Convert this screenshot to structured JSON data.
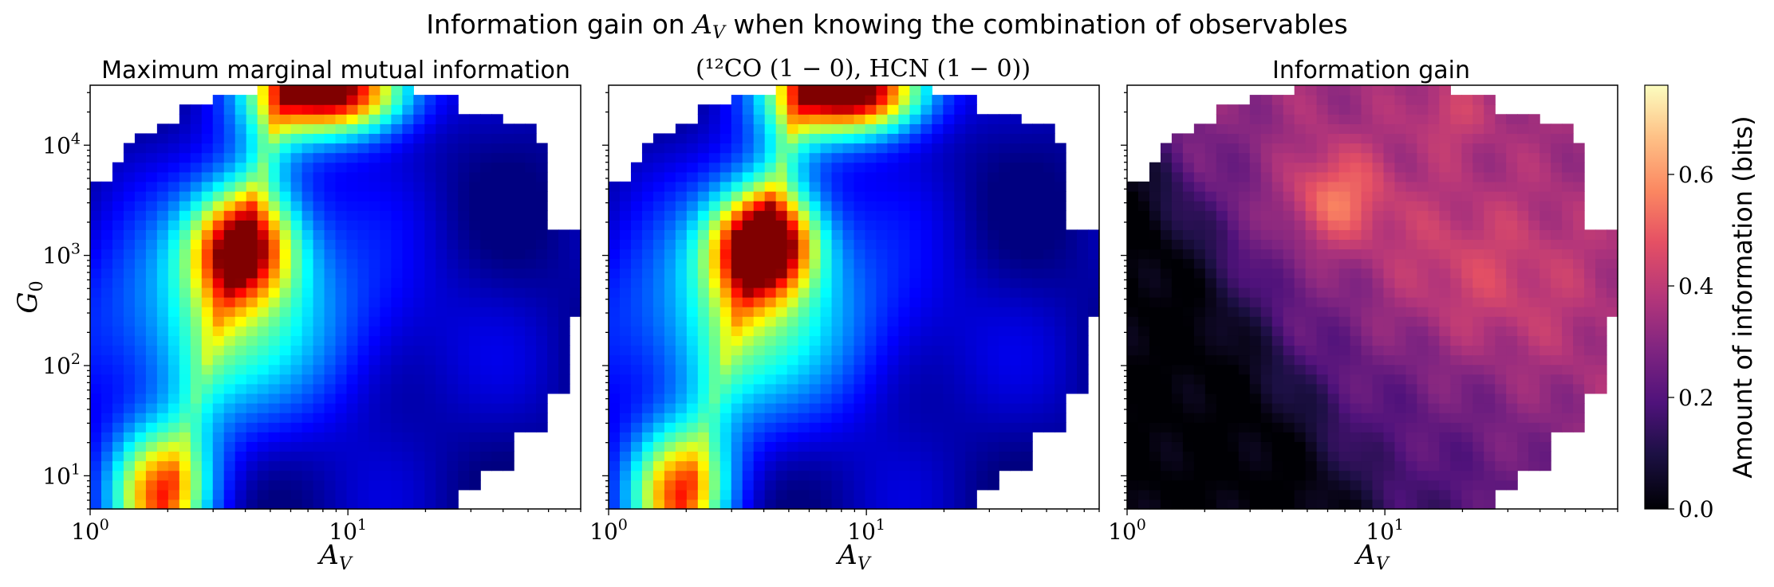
{
  "figure": {
    "suptitle_prefix": "Information gain on ",
    "suptitle_var": "A",
    "suptitle_var_sub": "V",
    "suptitle_suffix": " when knowing the combination of observables"
  },
  "chart_data": [
    {
      "type": "heatmap",
      "title": "Maximum marginal mutual information",
      "xlabel": "A_V",
      "ylabel": "G_0",
      "xscale": "log",
      "yscale": "log",
      "xlim": [
        1,
        80
      ],
      "ylim": [
        5,
        35000
      ],
      "xticks": [
        {
          "value": 1,
          "base": "10",
          "exp": "0"
        },
        {
          "value": 10,
          "base": "10",
          "exp": "1"
        }
      ],
      "yticks": [
        {
          "value": 10,
          "base": "10",
          "exp": "1"
        },
        {
          "value": 100,
          "base": "10",
          "exp": "2"
        },
        {
          "value": 1000,
          "base": "10",
          "exp": "3"
        },
        {
          "value": 10000,
          "base": "10",
          "exp": "4"
        }
      ],
      "colormap": "jet",
      "cmap_range": [
        0,
        0.76
      ]
    },
    {
      "type": "heatmap",
      "title": "(¹²CO (1 − 0), HCN (1 − 0))",
      "xlabel": "A_V",
      "xscale": "log",
      "yscale": "log",
      "xlim": [
        1,
        80
      ],
      "ylim": [
        5,
        35000
      ],
      "xticks": [
        {
          "value": 1,
          "base": "10",
          "exp": "0"
        },
        {
          "value": 10,
          "base": "10",
          "exp": "1"
        }
      ],
      "colormap": "jet",
      "cmap_range": [
        0,
        0.76
      ]
    },
    {
      "type": "heatmap",
      "title": "Information gain",
      "xlabel": "A_V",
      "xscale": "log",
      "yscale": "log",
      "xlim": [
        1,
        80
      ],
      "ylim": [
        5,
        35000
      ],
      "xticks": [
        {
          "value": 1,
          "base": "10",
          "exp": "0"
        },
        {
          "value": 10,
          "base": "10",
          "exp": "1"
        }
      ],
      "colormap": "magma",
      "cmap_range": [
        0,
        0.76
      ]
    }
  ],
  "colorbar": {
    "label": "Amount of information (bits)",
    "range": [
      0,
      0.76
    ],
    "ticks": [
      "0.0",
      "0.2",
      "0.4",
      "0.6"
    ],
    "colormap": "magma"
  }
}
